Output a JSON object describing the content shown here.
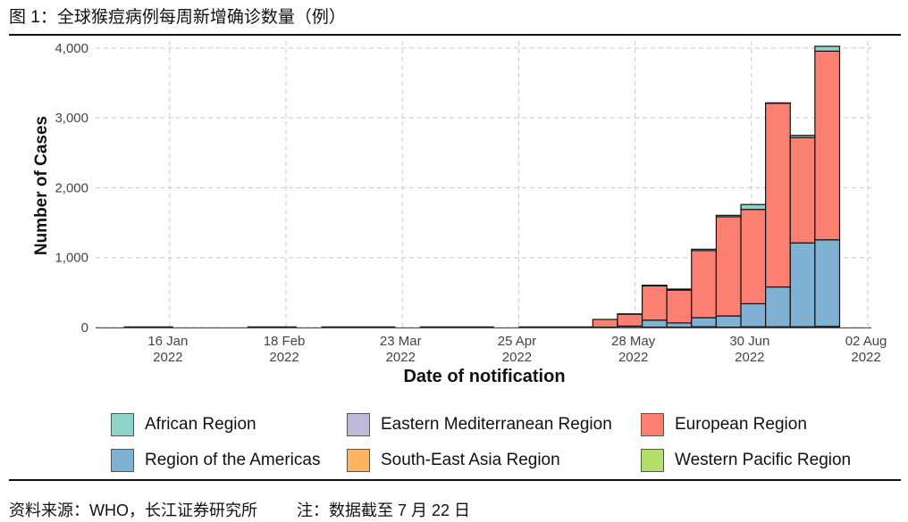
{
  "figure": {
    "title": "图 1：全球猴痘病例每周新增确诊数量（例）",
    "source": "资料来源：WHO，长江证券研究所",
    "note": "注：数据截至 7 月 22 日"
  },
  "chart_data": {
    "type": "bar",
    "stacked": true,
    "xlabel": "Date of notification",
    "ylabel": "Number of Cases",
    "ylim": [
      0,
      4100
    ],
    "y_ticks": [
      0,
      1000,
      2000,
      3000,
      4000
    ],
    "y_tick_labels": [
      "0",
      "1,000",
      "2,000",
      "3,000",
      "4,000"
    ],
    "x_ticks": [
      {
        "date": "2022-01-16",
        "label1": "16 Jan",
        "label2": "2022"
      },
      {
        "date": "2022-02-18",
        "label1": "18 Feb",
        "label2": "2022"
      },
      {
        "date": "2022-03-23",
        "label1": "23 Mar",
        "label2": "2022"
      },
      {
        "date": "2022-04-25",
        "label1": "25 Apr",
        "label2": "2022"
      },
      {
        "date": "2022-05-28",
        "label1": "28 May",
        "label2": "2022"
      },
      {
        "date": "2022-06-30",
        "label1": "30 Jun",
        "label2": "2022"
      },
      {
        "date": "2022-08-02",
        "label1": "02 Aug",
        "label2": "2022"
      }
    ],
    "xlim": [
      "2021-12-26",
      "2022-08-03"
    ],
    "grid": true,
    "legend_position": "bottom",
    "week_start": [
      "2022-01-03",
      "2022-01-10",
      "2022-02-07",
      "2022-02-14",
      "2022-02-28",
      "2022-03-07",
      "2022-03-14",
      "2022-03-28",
      "2022-04-04",
      "2022-04-11",
      "2022-04-25",
      "2022-05-02",
      "2022-05-09",
      "2022-05-16",
      "2022-05-23",
      "2022-05-30",
      "2022-06-06",
      "2022-06-13",
      "2022-06-20",
      "2022-06-27",
      "2022-07-04",
      "2022-07-11",
      "2022-07-18"
    ],
    "series": [
      {
        "name": "African Region",
        "color": "#8dd3c7",
        "values": [
          0,
          0,
          0,
          0,
          0,
          0,
          0,
          0,
          0,
          0,
          0,
          0,
          0,
          0,
          5,
          10,
          15,
          20,
          20,
          70,
          5,
          30,
          70
        ]
      },
      {
        "name": "Eastern Mediterranean Region",
        "color": "#bebada",
        "values": [
          0,
          0,
          0,
          0,
          0,
          0,
          0,
          0,
          0,
          0,
          0,
          0,
          0,
          0,
          0,
          0,
          0,
          0,
          0,
          0,
          0,
          0,
          0
        ]
      },
      {
        "name": "European Region",
        "color": "#fb8072",
        "values": [
          0,
          0,
          0,
          0,
          0,
          0,
          0,
          0,
          0,
          0,
          0,
          0,
          0,
          110,
          170,
          490,
          470,
          960,
          1420,
          1350,
          2630,
          1510,
          2700
        ]
      },
      {
        "name": "Region of the Americas",
        "color": "#80b1d3",
        "values": [
          0,
          0,
          0,
          0,
          0,
          0,
          0,
          0,
          0,
          0,
          0,
          0,
          0,
          5,
          20,
          100,
          60,
          130,
          160,
          330,
          570,
          1200,
          1240
        ]
      },
      {
        "name": "South-East Asia Region",
        "color": "#fdb462",
        "values": [
          0,
          0,
          0,
          0,
          0,
          0,
          0,
          0,
          0,
          0,
          0,
          0,
          0,
          0,
          0,
          0,
          0,
          0,
          0,
          0,
          0,
          0,
          0
        ]
      },
      {
        "name": "Western Pacific Region",
        "color": "#b3de69",
        "values": [
          0,
          0,
          0,
          0,
          0,
          0,
          0,
          0,
          0,
          0,
          0,
          0,
          0,
          0,
          0,
          5,
          5,
          10,
          5,
          10,
          10,
          10,
          15
        ]
      }
    ]
  }
}
